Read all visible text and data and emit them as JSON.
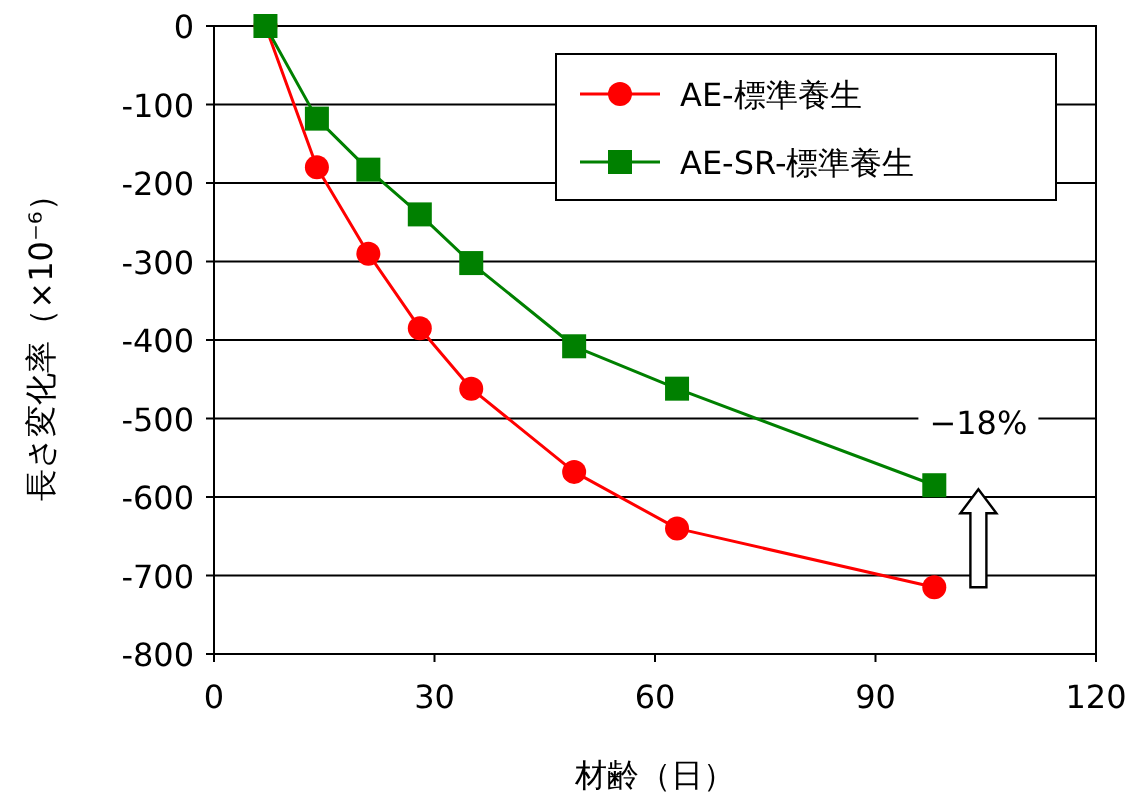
{
  "chart_data": {
    "type": "line",
    "xlabel": "材齢（日）",
    "ylabel": "長さ変化率（×10⁻⁶）",
    "xlim": [
      0,
      120
    ],
    "xticks": [
      0,
      30,
      60,
      90,
      120
    ],
    "ylim": [
      -800,
      0
    ],
    "yticks": [
      -800,
      -700,
      -600,
      -500,
      -400,
      -300,
      -200,
      -100,
      0
    ],
    "grid": "y",
    "legend": "top right",
    "line_style": "solid",
    "series": [
      {
        "name": "AE-標準養生",
        "color": "#ff0000",
        "marker": "circle",
        "x": [
          7,
          14,
          21,
          28,
          35,
          49,
          63,
          98
        ],
        "values": [
          0,
          -180,
          -290,
          -385,
          -462,
          -568,
          -640,
          -715
        ]
      },
      {
        "name": "AE-SR-標準養生",
        "color": "#008000",
        "marker": "square",
        "x": [
          7,
          14,
          21,
          28,
          35,
          49,
          63,
          98
        ],
        "values": [
          0,
          -118,
          -183,
          -240,
          -302,
          -408,
          -462,
          -585
        ]
      }
    ],
    "annotations": [
      "−18%"
    ]
  }
}
